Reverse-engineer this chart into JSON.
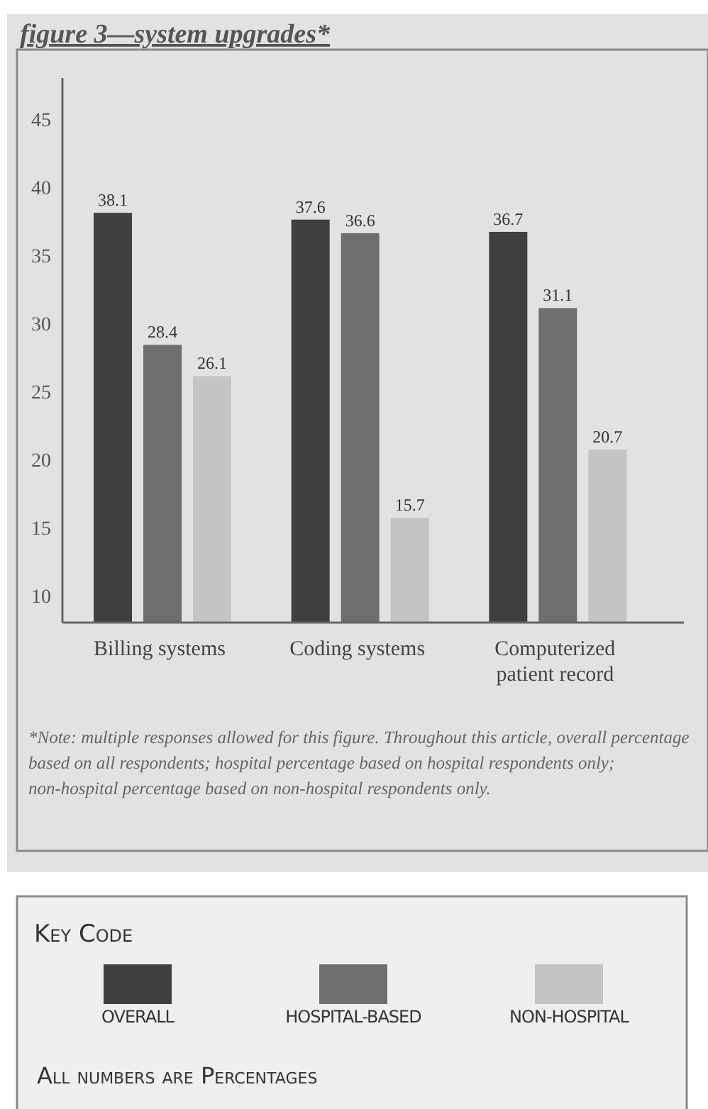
{
  "chart_data": {
    "type": "bar",
    "title": "figure 3—system upgrades*",
    "categories": [
      "Billing systems",
      "Coding systems",
      "Computerized patient record"
    ],
    "series": [
      {
        "name": "OVERALL",
        "color": "#404040",
        "values": [
          38.1,
          37.6,
          36.7
        ]
      },
      {
        "name": "HOSPITAL-BASED",
        "color": "#6e6e6e",
        "values": [
          28.4,
          36.6,
          31.1
        ]
      },
      {
        "name": "NON-HOSPITAL",
        "color": "#c4c4c4",
        "values": [
          26.1,
          15.7,
          20.7
        ]
      }
    ],
    "ylim": [
      8,
      48
    ],
    "yticks": [
      10,
      15,
      20,
      25,
      30,
      35,
      40,
      45
    ],
    "grid": false,
    "data_labels": true,
    "legend": "bottom",
    "legend_title": "Key Code",
    "annotations": [
      "*Note: multiple responses allowed for this figure. Throughout this article, overall percentage based on all respondents; hospital percentage based on hospital respondents only; non-hospital percentage based on non-hospital respondents only.",
      "All numbers are Percentages"
    ]
  }
}
